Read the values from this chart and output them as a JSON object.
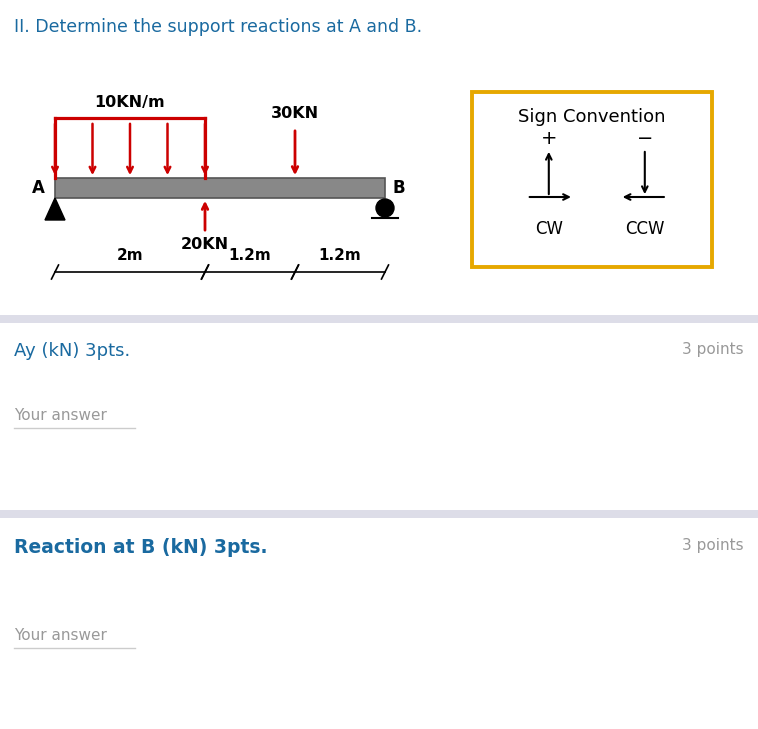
{
  "title": "II. Determine the support reactions at A and B.",
  "title_color": "#1a6aa0",
  "title_fontsize": 12.5,
  "beam_load_label": "10KN/m",
  "point_load_label": "30KN",
  "upward_load_label": "20KN",
  "sign_convention_title": "Sign Convention",
  "sign_plus": "+",
  "sign_minus": "−",
  "sign_cw": "CW",
  "sign_ccw": "CCW",
  "q1_label": "Ay (kN) 3pts.",
  "q1_points": "3 points",
  "q1_answer": "Your answer",
  "q2_label": "Reaction at B (kN) 3pts.",
  "q2_points": "3 points",
  "q2_answer": "Your answer",
  "beam_color": "#888888",
  "load_color": "#cc0000",
  "orange_box_color": "#e6a800",
  "separator_color": "#dddde8",
  "text_blue": "#1a6aa0",
  "text_gray": "#999999",
  "answer_line_color": "#cccccc",
  "bg_color": "#ffffff"
}
